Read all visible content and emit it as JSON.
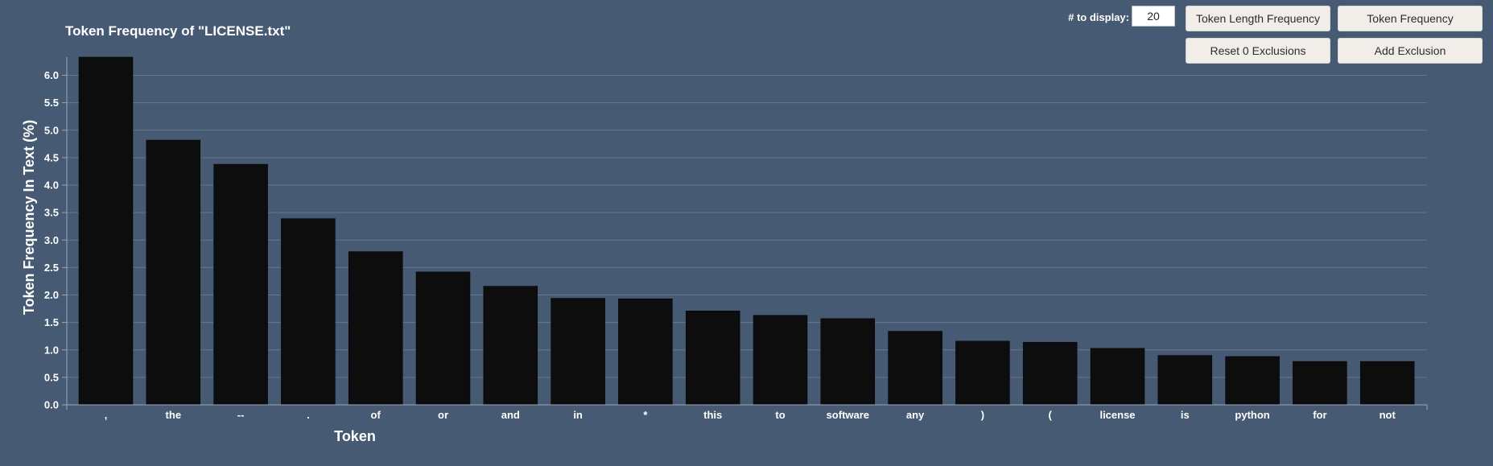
{
  "controls": {
    "display_label": "# to display:",
    "display_value": "20",
    "token_length_button": "Token Length Frequency",
    "token_frequency_button": "Token Frequency",
    "reset_button": "Reset 0 Exclusions",
    "add_exclusion_button": "Add Exclusion"
  },
  "colors": {
    "background": "#465a74",
    "bar": "#0d0d0d",
    "grid": "#66778d",
    "axis": "#9aa6b6",
    "text": "#ffffff"
  },
  "chart_data": {
    "type": "bar",
    "title": "Token Frequency of \"LICENSE.txt\"",
    "xlabel": "Token",
    "ylabel": "Token Frequency In Text (%)",
    "categories": [
      ",",
      "the",
      "--",
      ".",
      "of",
      "or",
      "and",
      "in",
      "*",
      "this",
      "to",
      "software",
      "any",
      ")",
      "(",
      "license",
      "is",
      "python",
      "for",
      "not"
    ],
    "values": [
      6.33,
      4.82,
      4.38,
      3.39,
      2.79,
      2.42,
      2.16,
      1.94,
      1.93,
      1.71,
      1.63,
      1.57,
      1.34,
      1.16,
      1.14,
      1.03,
      0.9,
      0.88,
      0.79,
      0.79
    ],
    "yticks": [
      "0.0",
      "0.5",
      "1.0",
      "1.5",
      "2.0",
      "2.5",
      "3.0",
      "3.5",
      "4.0",
      "4.5",
      "5.0",
      "5.5",
      "6.0"
    ],
    "ylim": [
      0,
      6.33
    ],
    "grid": true
  }
}
